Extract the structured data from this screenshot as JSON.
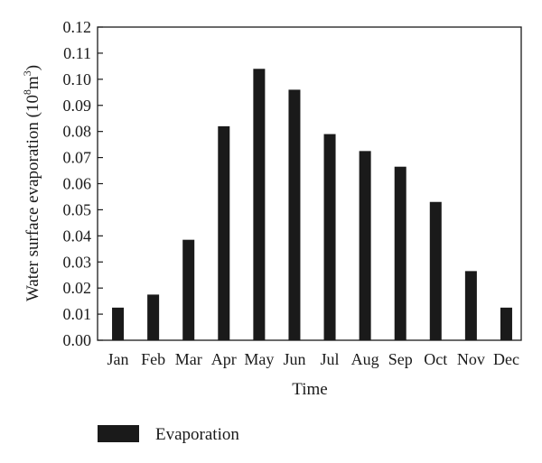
{
  "chart_data": {
    "type": "bar",
    "xlabel": "Time",
    "ylabel": "Water surface evaporation (10",
    "ylabel_exp_8": "8",
    "ylabel_unit": "m",
    "ylabel_exp_3": "3",
    "ylabel_close": ")",
    "categories": [
      "Jan",
      "Feb",
      "Mar",
      "Apr",
      "May",
      "Jun",
      "Jul",
      "Aug",
      "Sep",
      "Oct",
      "Nov",
      "Dec"
    ],
    "series": [
      {
        "name": "Evaporation",
        "values": [
          0.0125,
          0.0175,
          0.0385,
          0.082,
          0.104,
          0.096,
          0.079,
          0.0725,
          0.0665,
          0.053,
          0.0265,
          0.0125
        ]
      }
    ],
    "ylim": [
      0,
      0.12
    ],
    "yticks": [
      "0.00",
      "0.01",
      "0.02",
      "0.03",
      "0.04",
      "0.05",
      "0.06",
      "0.07",
      "0.08",
      "0.09",
      "0.10",
      "0.11",
      "0.12"
    ],
    "grid": false,
    "legend": "bottom-left",
    "bar_color": "#1a1a1a"
  }
}
